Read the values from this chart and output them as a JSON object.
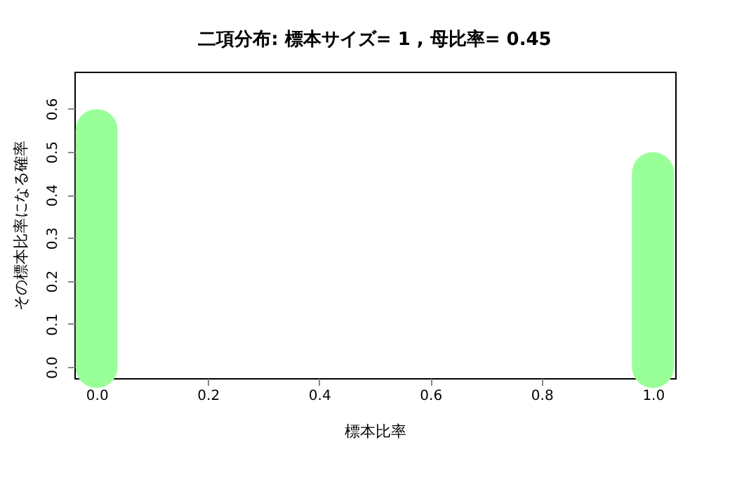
{
  "chart_data": {
    "type": "bar",
    "title": "二項分布: 標本サイズ= 1 , 母比率= 0.45",
    "xlabel": "標本比率",
    "ylabel": "その標本比率になる確率",
    "x": [
      0,
      1
    ],
    "values": [
      0.55,
      0.45
    ],
    "color": "#99ff99",
    "xlim": [
      -0.04,
      1.04
    ],
    "xticks": [
      {
        "value": 0,
        "label": "0.0"
      },
      0.2,
      0.4,
      0.6,
      0.8,
      {
        "value": 1,
        "label": "1.0"
      }
    ],
    "ylim": [
      -0.026,
      0.686
    ],
    "yticks": [
      {
        "value": 0,
        "label": "0.0"
      },
      0.1,
      0.2,
      0.3,
      0.4,
      0.5,
      0.6
    ],
    "grid": false
  }
}
